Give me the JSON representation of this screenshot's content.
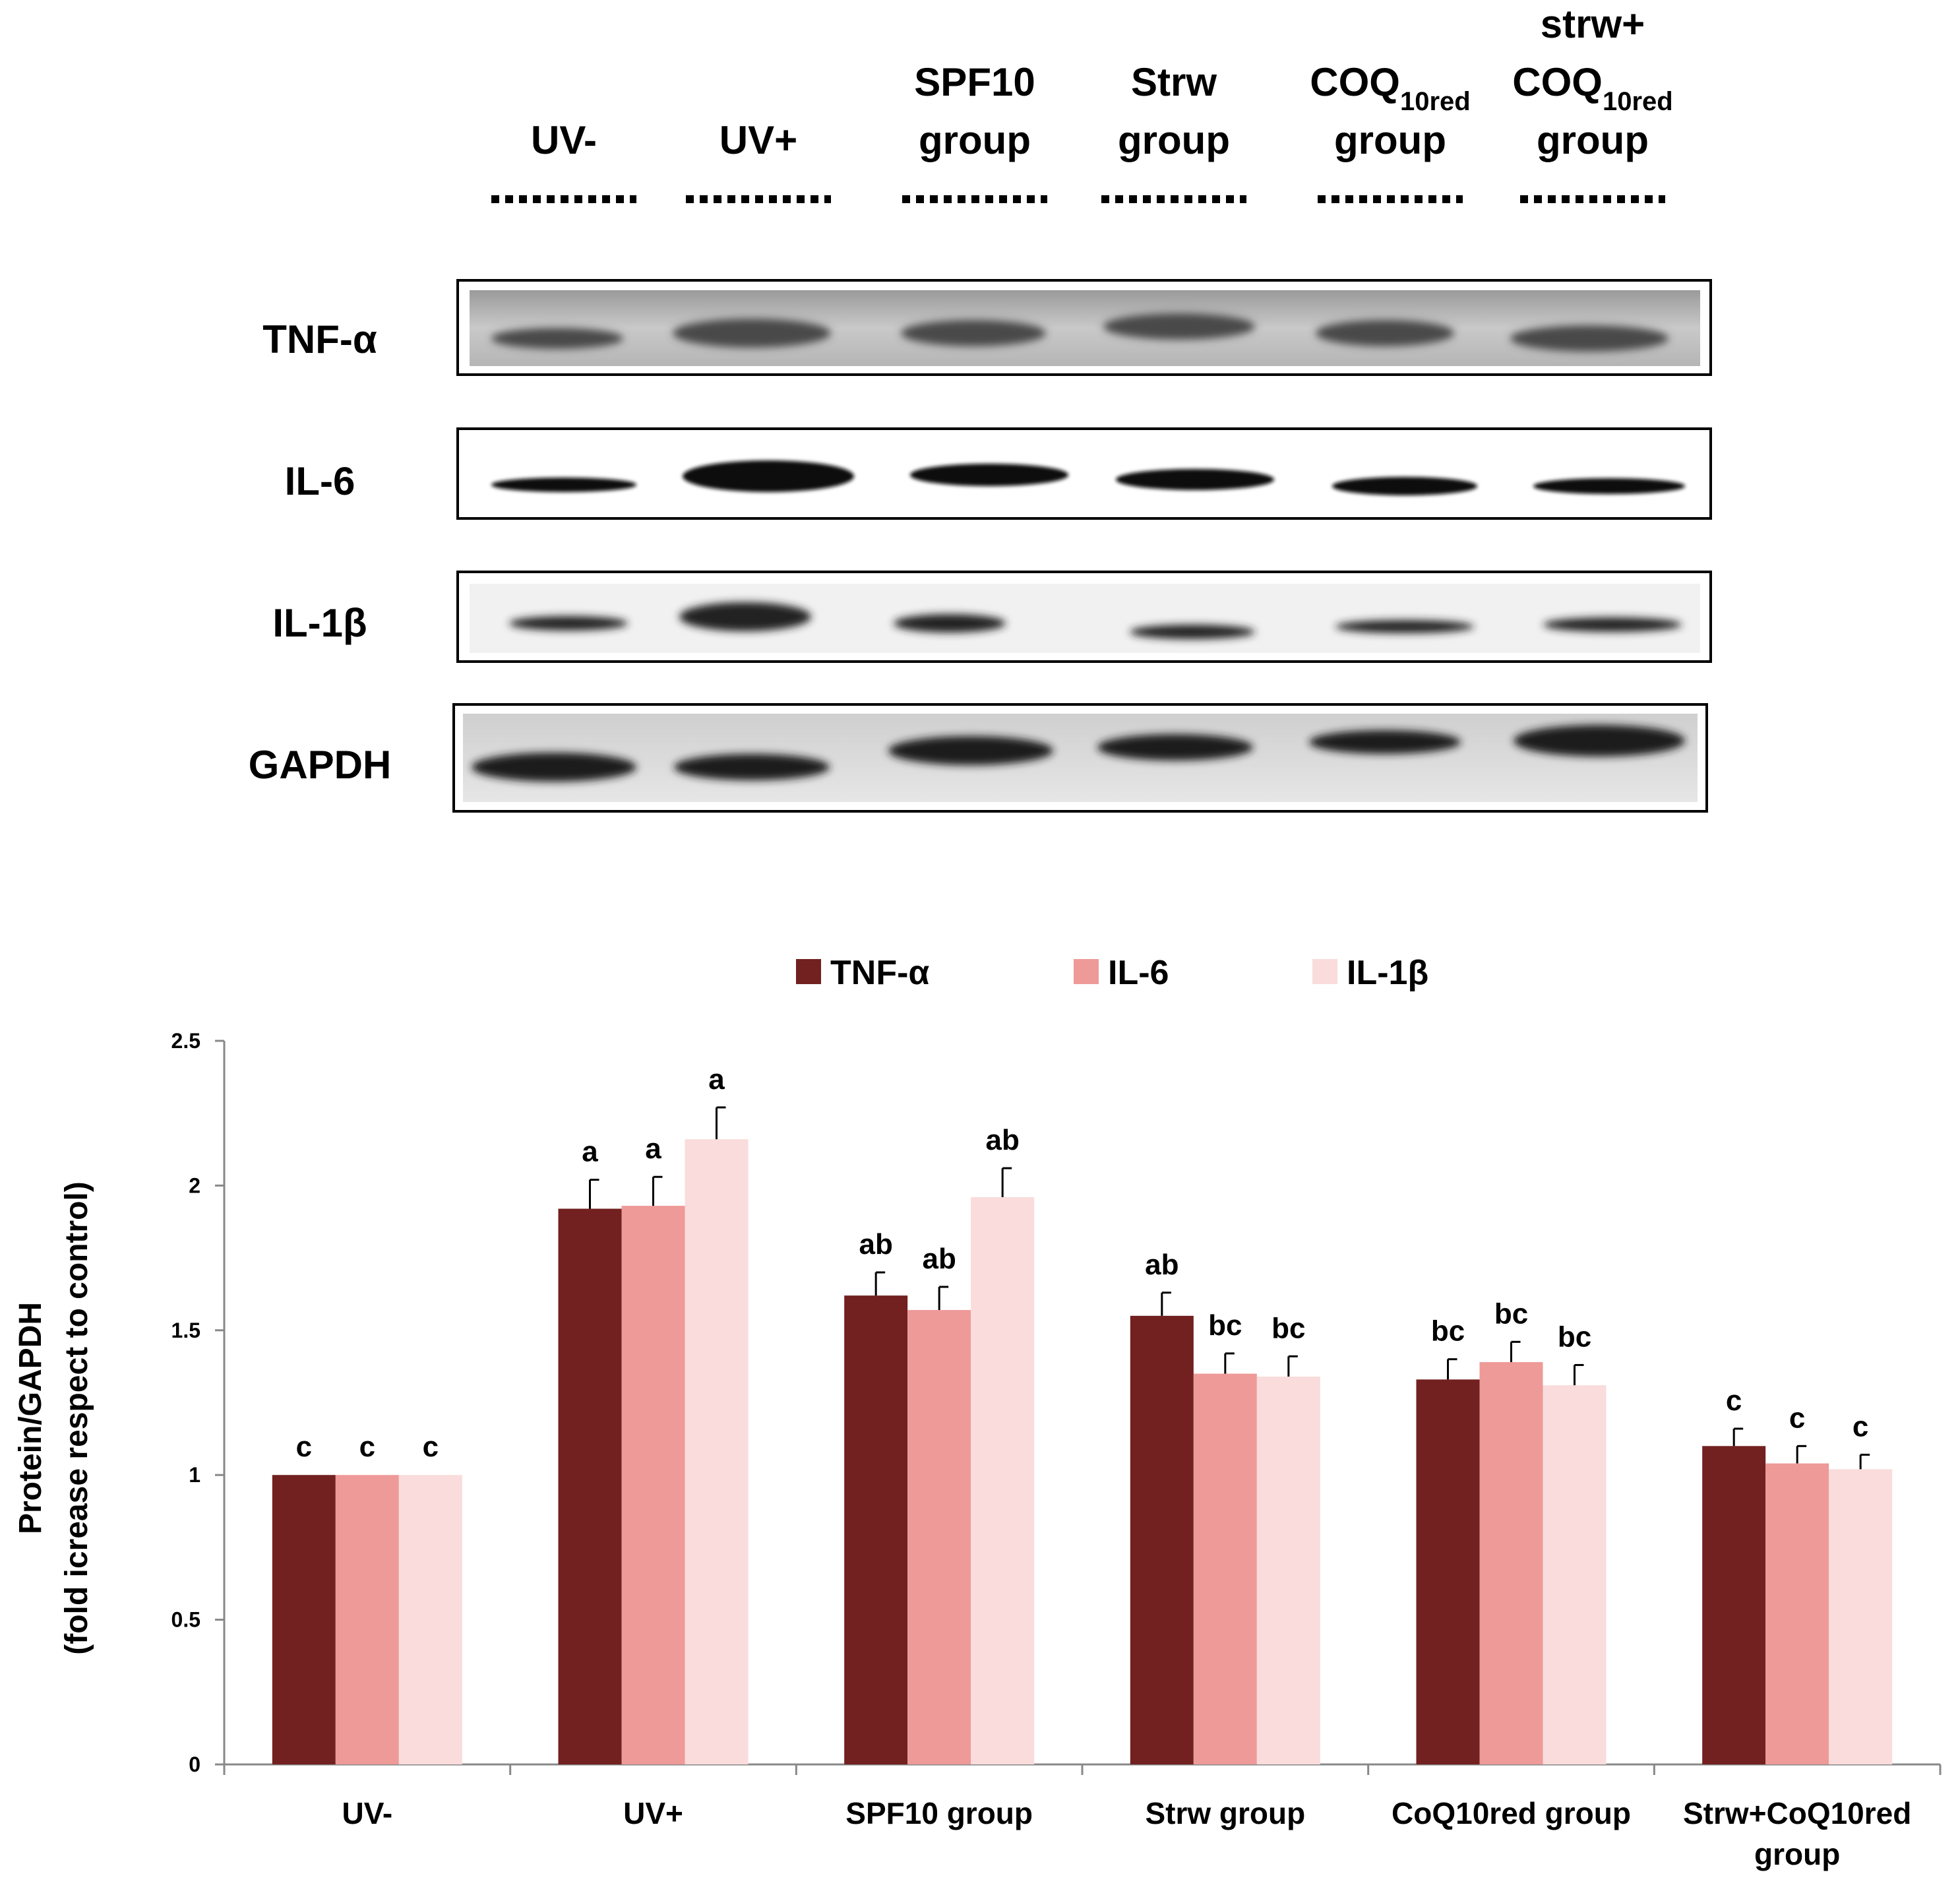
{
  "blot": {
    "lanes": [
      {
        "lines": [
          "UV-"
        ]
      },
      {
        "lines": [
          "UV+"
        ]
      },
      {
        "lines": [
          "SPF10",
          "group"
        ]
      },
      {
        "lines": [
          "Strw",
          "group"
        ]
      },
      {
        "lines": [
          "COQ",
          "group"
        ],
        "sub": "10red"
      },
      {
        "lines": [
          "strw+",
          "COQ",
          "group"
        ],
        "sub": "10red"
      }
    ],
    "rows": [
      "TNF-α",
      "IL-6",
      "IL-1β",
      "GAPDH"
    ]
  },
  "chart_data": {
    "type": "bar",
    "categories": [
      "UV-",
      "UV+",
      "SPF10 group",
      "Strw group",
      "CoQ10red group",
      "Strw+CoQ10red group"
    ],
    "series": [
      {
        "name": "TNF-α",
        "values": [
          1.0,
          1.92,
          1.62,
          1.55,
          1.33,
          1.1
        ],
        "errors": [
          0,
          0.1,
          0.08,
          0.08,
          0.07,
          0.06
        ],
        "labels": [
          "c",
          "a",
          "ab",
          "ab",
          "bc",
          "c"
        ],
        "color": "#722020"
      },
      {
        "name": "IL-6",
        "values": [
          1.0,
          1.93,
          1.57,
          1.35,
          1.39,
          1.04
        ],
        "errors": [
          0,
          0.1,
          0.08,
          0.07,
          0.07,
          0.06
        ],
        "labels": [
          "c",
          "a",
          "ab",
          "bc",
          "bc",
          "c"
        ],
        "color": "#EE9A98"
      },
      {
        "name": "IL-1β",
        "values": [
          1.0,
          2.16,
          1.96,
          1.34,
          1.31,
          1.02
        ],
        "errors": [
          0,
          0.11,
          0.1,
          0.07,
          0.07,
          0.05
        ],
        "labels": [
          "c",
          "a",
          "ab",
          "bc",
          "bc",
          "c"
        ],
        "color": "#F9DCDB"
      }
    ],
    "ylabel": [
      "Protein/GAPDH",
      "(fold icrease respect to control)"
    ],
    "ylim": [
      0,
      2.5
    ],
    "yticks": [
      "0",
      "0.5",
      "1",
      "1.5",
      "2",
      "2.5"
    ],
    "grid": false,
    "legend_position": "top"
  }
}
